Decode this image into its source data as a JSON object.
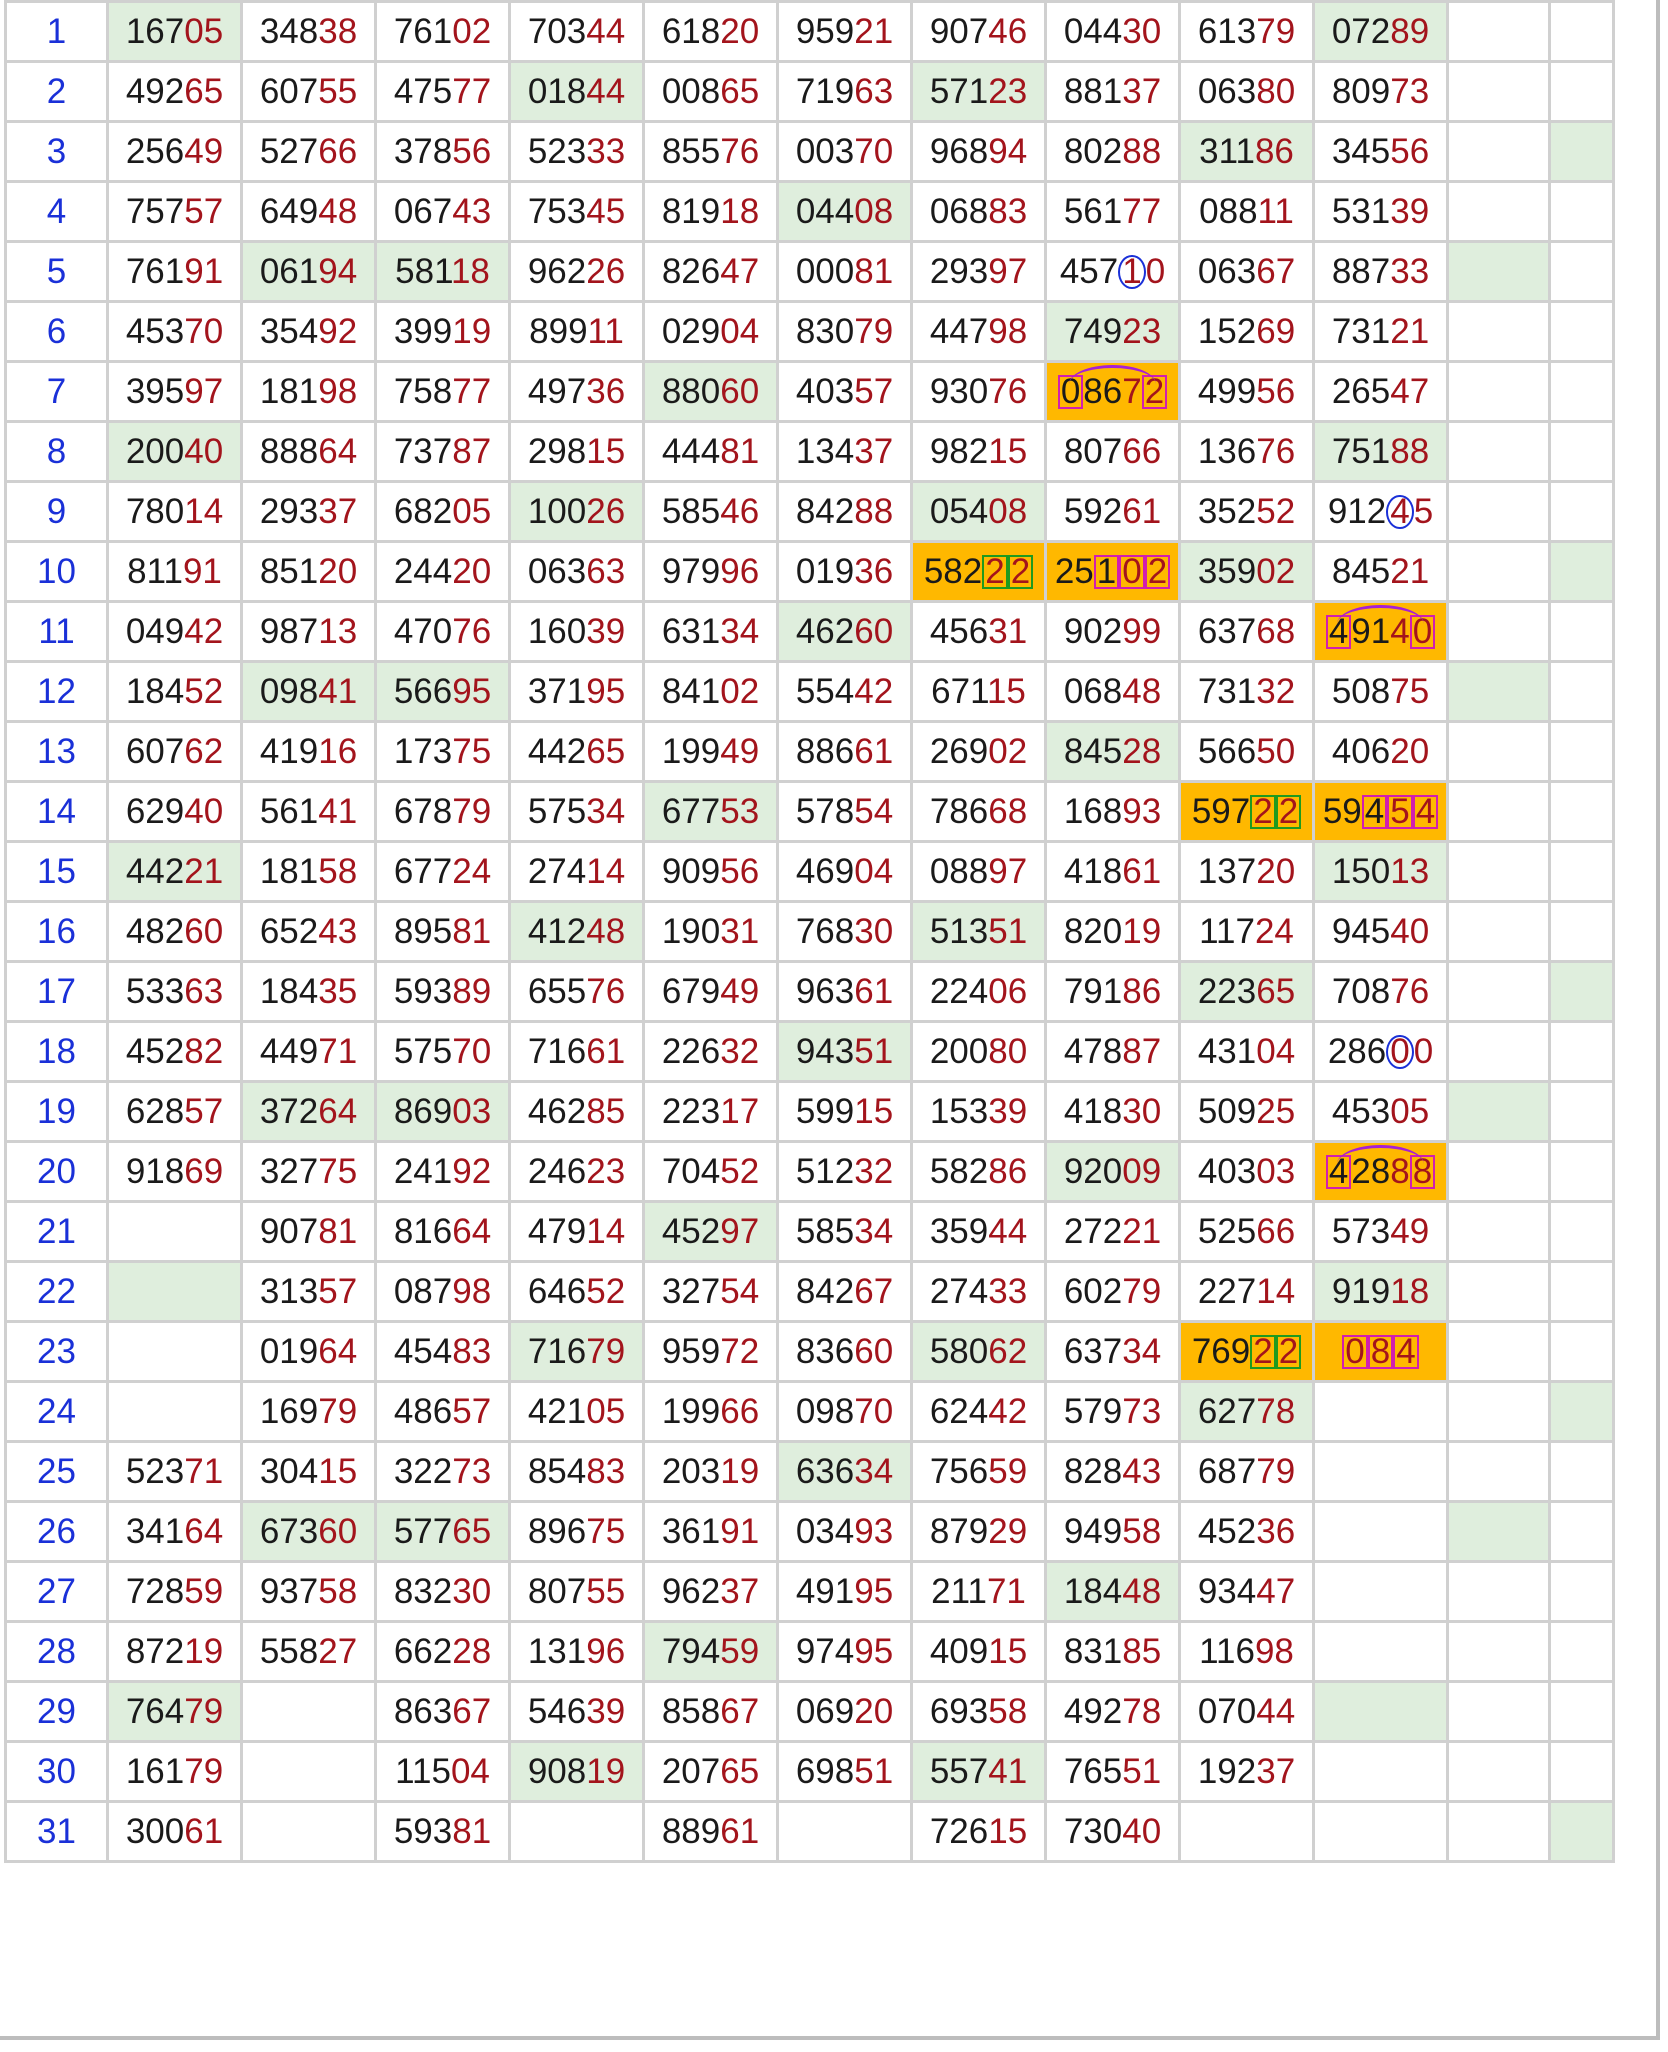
{
  "colors": {
    "day_number": "#1a30d8",
    "prefix_digits": "#1a1a1a",
    "suffix_digits": "#a3141c",
    "green_cell": "#dfeedd",
    "orange_cell": "#ffb800",
    "mark_circle": "#1a30d8",
    "mark_box": "#d11fb0",
    "mark_arc": "#a61fd6"
  },
  "rows": [
    {
      "day": "1",
      "cells": [
        "16705",
        "34838",
        "76102",
        "70344",
        "61820",
        "95921",
        "90746",
        "04430",
        "61379",
        "07289"
      ],
      "green": [
        0,
        9
      ],
      "orange": [],
      "tail_green": false
    },
    {
      "day": "2",
      "cells": [
        "49265",
        "60755",
        "47577",
        "01844",
        "00865",
        "71963",
        "57123",
        "88137",
        "06380",
        "80973"
      ],
      "green": [
        3,
        6
      ],
      "orange": [],
      "tail_green": false
    },
    {
      "day": "3",
      "cells": [
        "25649",
        "52766",
        "37856",
        "52333",
        "85576",
        "00370",
        "96894",
        "80288",
        "31186",
        "34556"
      ],
      "green": [
        8
      ],
      "orange": [],
      "tail_green": true
    },
    {
      "day": "4",
      "cells": [
        "75757",
        "64948",
        "06743",
        "75345",
        "81918",
        "04408",
        "06883",
        "56177",
        "08811",
        "53139"
      ],
      "green": [
        5
      ],
      "orange": [],
      "tail_green": false
    },
    {
      "day": "5",
      "cells": [
        "76191",
        "06194",
        "58118",
        "96226",
        "82647",
        "00081",
        "29397",
        "45710",
        "06367",
        "88733"
      ],
      "green": [
        1,
        2
      ],
      "orange": [],
      "extra_green": true
    },
    {
      "day": "6",
      "cells": [
        "45370",
        "35492",
        "39919",
        "89911",
        "02904",
        "83079",
        "44798",
        "74923",
        "15269",
        "73121"
      ],
      "green": [
        7
      ],
      "orange": [],
      "tail_green": false
    },
    {
      "day": "7",
      "cells": [
        "39597",
        "18198",
        "75877",
        "49736",
        "88060",
        "40357",
        "93076",
        "08672",
        "49956",
        "26547"
      ],
      "green": [
        4
      ],
      "orange": [
        7
      ],
      "tail_green": false
    },
    {
      "day": "8",
      "cells": [
        "20040",
        "88864",
        "73787",
        "29815",
        "44481",
        "13437",
        "98215",
        "80766",
        "13676",
        "75188"
      ],
      "green": [
        0,
        9
      ],
      "orange": [],
      "tail_green": false
    },
    {
      "day": "9",
      "cells": [
        "78014",
        "29337",
        "68205",
        "10026",
        "58546",
        "84288",
        "05408",
        "59261",
        "35252",
        "91245"
      ],
      "green": [
        3,
        6
      ],
      "orange": [],
      "tail_green": false
    },
    {
      "day": "10",
      "cells": [
        "81191",
        "85120",
        "24420",
        "06363",
        "97996",
        "01936",
        "58222",
        "25102",
        "35902",
        "84521"
      ],
      "green": [
        8
      ],
      "orange": [
        6,
        7
      ],
      "tail_green": true
    },
    {
      "day": "11",
      "cells": [
        "04942",
        "98713",
        "47076",
        "16039",
        "63134",
        "46260",
        "45631",
        "90299",
        "63768",
        "49140"
      ],
      "green": [
        5
      ],
      "orange": [
        9
      ],
      "tail_green": false
    },
    {
      "day": "12",
      "cells": [
        "18452",
        "09841",
        "56695",
        "37195",
        "84102",
        "55442",
        "67115",
        "06848",
        "73132",
        "50875"
      ],
      "green": [
        1,
        2
      ],
      "orange": [],
      "extra_green": true
    },
    {
      "day": "13",
      "cells": [
        "60762",
        "41916",
        "17375",
        "44265",
        "19949",
        "88661",
        "26902",
        "84528",
        "56650",
        "40620"
      ],
      "green": [
        7
      ],
      "orange": [],
      "tail_green": false
    },
    {
      "day": "14",
      "cells": [
        "62940",
        "56141",
        "67879",
        "57534",
        "67753",
        "57854",
        "78668",
        "16893",
        "59722",
        "59454"
      ],
      "green": [
        4
      ],
      "orange": [
        8,
        9
      ],
      "tail_green": false
    },
    {
      "day": "15",
      "cells": [
        "44221",
        "18158",
        "67724",
        "27414",
        "90956",
        "46904",
        "08897",
        "41861",
        "13720",
        "15013"
      ],
      "green": [
        0,
        9
      ],
      "orange": [],
      "tail_green": false
    },
    {
      "day": "16",
      "cells": [
        "48260",
        "65243",
        "89581",
        "41248",
        "19031",
        "76830",
        "51351",
        "82019",
        "11724",
        "94540"
      ],
      "green": [
        3,
        6
      ],
      "orange": [],
      "tail_green": false
    },
    {
      "day": "17",
      "cells": [
        "53363",
        "18435",
        "59389",
        "65576",
        "67949",
        "96361",
        "22406",
        "79186",
        "22365",
        "70876"
      ],
      "green": [
        8
      ],
      "orange": [],
      "tail_green": true
    },
    {
      "day": "18",
      "cells": [
        "45282",
        "44971",
        "57570",
        "71661",
        "22632",
        "94351",
        "20080",
        "47887",
        "43104",
        "28600"
      ],
      "green": [
        5
      ],
      "orange": [],
      "tail_green": false
    },
    {
      "day": "19",
      "cells": [
        "62857",
        "37264",
        "86903",
        "46285",
        "22317",
        "59915",
        "15339",
        "41830",
        "50925",
        "45305"
      ],
      "green": [
        1,
        2
      ],
      "orange": [],
      "extra_green": true
    },
    {
      "day": "20",
      "cells": [
        "91869",
        "32775",
        "24192",
        "24623",
        "70452",
        "51232",
        "58286",
        "92009",
        "40303",
        "42888"
      ],
      "green": [
        7
      ],
      "orange": [
        9
      ],
      "tail_green": false
    },
    {
      "day": "21",
      "cells": [
        "",
        "90781",
        "81664",
        "47914",
        "45297",
        "58534",
        "35944",
        "27221",
        "52566",
        "57349"
      ],
      "green": [
        4
      ],
      "orange": [],
      "tail_green": false
    },
    {
      "day": "22",
      "cells": [
        "",
        "31357",
        "08798",
        "64652",
        "32754",
        "84267",
        "27433",
        "60279",
        "22714",
        "91918"
      ],
      "green": [
        0,
        9
      ],
      "orange": [],
      "tail_green": false
    },
    {
      "day": "23",
      "cells": [
        "",
        "01964",
        "45483",
        "71679",
        "95972",
        "83660",
        "58062",
        "63734",
        "76922",
        "084"
      ],
      "green": [
        3,
        6
      ],
      "orange": [
        8,
        9
      ],
      "tail_green": false
    },
    {
      "day": "24",
      "cells": [
        "",
        "16979",
        "48657",
        "42105",
        "19966",
        "09870",
        "62442",
        "57973",
        "62778",
        ""
      ],
      "green": [
        8
      ],
      "orange": [],
      "tail_green": true
    },
    {
      "day": "25",
      "cells": [
        "52371",
        "30415",
        "32273",
        "85483",
        "20319",
        "63634",
        "75659",
        "82843",
        "68779",
        ""
      ],
      "green": [
        5
      ],
      "orange": [],
      "tail_green": false
    },
    {
      "day": "26",
      "cells": [
        "34164",
        "67360",
        "57765",
        "89675",
        "36191",
        "03493",
        "87929",
        "94958",
        "45236",
        ""
      ],
      "green": [
        1,
        2
      ],
      "orange": [],
      "extra_green": true
    },
    {
      "day": "27",
      "cells": [
        "72859",
        "93758",
        "83230",
        "80755",
        "96237",
        "49195",
        "21171",
        "18448",
        "93447",
        ""
      ],
      "green": [
        7
      ],
      "orange": [],
      "tail_green": false
    },
    {
      "day": "28",
      "cells": [
        "87219",
        "55827",
        "66228",
        "13196",
        "79459",
        "97495",
        "40915",
        "83185",
        "11698",
        ""
      ],
      "green": [
        4
      ],
      "orange": [],
      "tail_green": false
    },
    {
      "day": "29",
      "cells": [
        "76479",
        "",
        "86367",
        "54639",
        "85867",
        "06920",
        "69358",
        "49278",
        "07044",
        ""
      ],
      "green": [
        0,
        9
      ],
      "orange": [],
      "tail_green": false
    },
    {
      "day": "30",
      "cells": [
        "16179",
        "",
        "11504",
        "90819",
        "20765",
        "69851",
        "55741",
        "76551",
        "19237",
        ""
      ],
      "green": [
        3,
        6
      ],
      "orange": [],
      "tail_green": false
    },
    {
      "day": "31",
      "cells": [
        "30061",
        "",
        "59381",
        "",
        "88961",
        "",
        "72615",
        "73040",
        "",
        ""
      ],
      "green": [],
      "orange": [],
      "tail_green": true
    }
  ],
  "marks": [
    {
      "row": 5,
      "col": 7,
      "type": "circle",
      "pos": [
        3
      ],
      "arc": false
    },
    {
      "row": 7,
      "col": 7,
      "type": "box",
      "pos": [
        0,
        4
      ],
      "arc": true
    },
    {
      "row": 9,
      "col": 9,
      "type": "circle",
      "pos": [
        3
      ],
      "arc": false
    },
    {
      "row": 10,
      "col": 6,
      "type": "gbox",
      "pos": [
        3,
        4
      ],
      "arc": false
    },
    {
      "row": 10,
      "col": 7,
      "type": "box",
      "pos": [
        2,
        3,
        4
      ],
      "arc": false
    },
    {
      "row": 11,
      "col": 9,
      "type": "box",
      "pos": [
        0,
        4
      ],
      "arc": true
    },
    {
      "row": 14,
      "col": 8,
      "type": "gbox",
      "pos": [
        3,
        4
      ],
      "arc": false
    },
    {
      "row": 14,
      "col": 9,
      "type": "box",
      "pos": [
        2,
        3,
        4
      ],
      "arc": false
    },
    {
      "row": 18,
      "col": 9,
      "type": "circle",
      "pos": [
        3
      ],
      "arc": false
    },
    {
      "row": 20,
      "col": 9,
      "type": "box",
      "pos": [
        0,
        4
      ],
      "arc": true
    },
    {
      "row": 23,
      "col": 8,
      "type": "gbox",
      "pos": [
        3,
        4
      ],
      "arc": false
    },
    {
      "row": 23,
      "col": 9,
      "type": "box",
      "pos": [
        0,
        1,
        2
      ],
      "arc": false
    }
  ]
}
